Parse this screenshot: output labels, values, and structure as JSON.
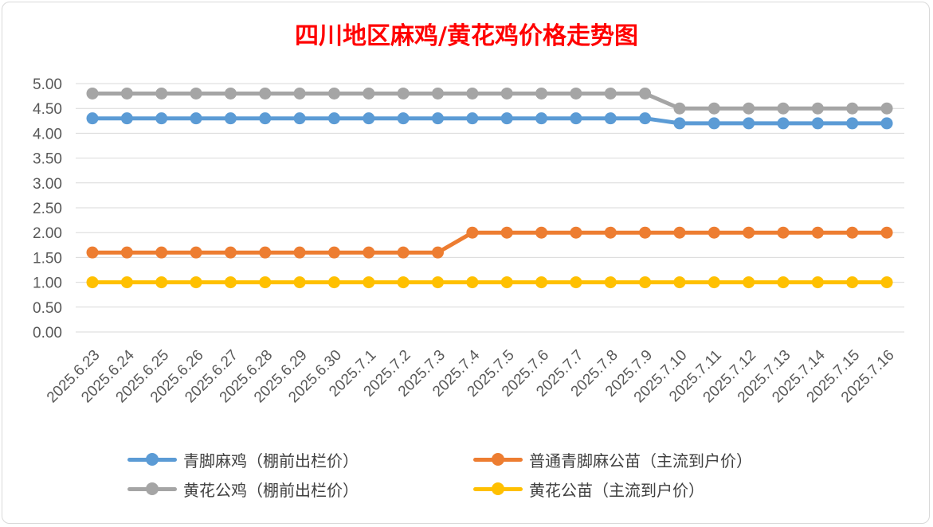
{
  "chart_data": {
    "type": "line",
    "title": "四川地区麻鸡/黄花鸡价格走势图",
    "categories": [
      "2025.6.23",
      "2025.6.24",
      "2025.6.25",
      "2025.6.26",
      "2025.6.27",
      "2025.6.28",
      "2025.6.29",
      "2025.6.30",
      "2025.7.1",
      "2025.7.2",
      "2025.7.3",
      "2025.7.4",
      "2025.7.5",
      "2025.7.6",
      "2025.7.7",
      "2025.7.8",
      "2025.7.9",
      "2025.7.10",
      "2025.7.11",
      "2025.7.12",
      "2025.7.13",
      "2025.7.14",
      "2025.7.15",
      "2025.7.16"
    ],
    "ylim": [
      0,
      5
    ],
    "yticks": [
      "0.00",
      "0.50",
      "1.00",
      "1.50",
      "2.00",
      "2.50",
      "3.00",
      "3.50",
      "4.00",
      "4.50",
      "5.00"
    ],
    "grid": true,
    "legend_position": "bottom",
    "series": [
      {
        "name": "青脚麻鸡（棚前出栏价）",
        "color": "#5b9bd5",
        "values": [
          4.3,
          4.3,
          4.3,
          4.3,
          4.3,
          4.3,
          4.3,
          4.3,
          4.3,
          4.3,
          4.3,
          4.3,
          4.3,
          4.3,
          4.3,
          4.3,
          4.3,
          4.2,
          4.2,
          4.2,
          4.2,
          4.2,
          4.2,
          4.2
        ]
      },
      {
        "name": "普通青脚麻公苗（主流到户价）",
        "color": "#ed7d31",
        "values": [
          1.6,
          1.6,
          1.6,
          1.6,
          1.6,
          1.6,
          1.6,
          1.6,
          1.6,
          1.6,
          1.6,
          2.0,
          2.0,
          2.0,
          2.0,
          2.0,
          2.0,
          2.0,
          2.0,
          2.0,
          2.0,
          2.0,
          2.0,
          2.0
        ]
      },
      {
        "name": "黄花公鸡（棚前出栏价）",
        "color": "#a5a5a5",
        "values": [
          4.8,
          4.8,
          4.8,
          4.8,
          4.8,
          4.8,
          4.8,
          4.8,
          4.8,
          4.8,
          4.8,
          4.8,
          4.8,
          4.8,
          4.8,
          4.8,
          4.8,
          4.5,
          4.5,
          4.5,
          4.5,
          4.5,
          4.5,
          4.5
        ]
      },
      {
        "name": "黄花公苗（主流到户价）",
        "color": "#ffc000",
        "values": [
          1.0,
          1.0,
          1.0,
          1.0,
          1.0,
          1.0,
          1.0,
          1.0,
          1.0,
          1.0,
          1.0,
          1.0,
          1.0,
          1.0,
          1.0,
          1.0,
          1.0,
          1.0,
          1.0,
          1.0,
          1.0,
          1.0,
          1.0,
          1.0
        ]
      }
    ]
  }
}
